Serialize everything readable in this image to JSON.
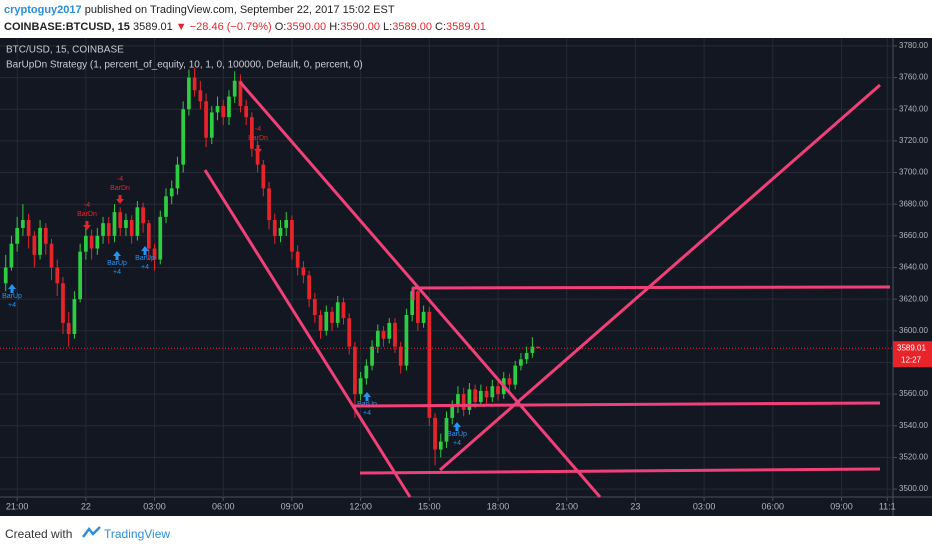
{
  "header": {
    "author": "cryptoguy2017",
    "published": "published on TradingView.com, September 22, 2017 15:02 EST",
    "symbol": "COINBASE:BTCUSD, 15",
    "last": "3589.01",
    "change": "▼ −28.46 (−0.79%)",
    "ohlc": [
      {
        "key": "O:",
        "value": "3590.00"
      },
      {
        "key": "H:",
        "value": "3590.00"
      },
      {
        "key": "L:",
        "value": "3589.00"
      },
      {
        "key": "C:",
        "value": "3589.01"
      }
    ]
  },
  "footer": {
    "text": "Created with",
    "brand": "TradingView"
  },
  "chart_data": {
    "type": "candlestick",
    "title": "BTC/USD, 15, COINBASE",
    "subtitle": "BarUpDn Strategy (1, percent_of_equity, 10, 1, 0, 100000, Default, 0, percent, 0)",
    "up_color": "#2ecc40",
    "down_color": "#e8242b",
    "x": [
      -2,
      -1,
      0,
      1,
      2,
      3,
      4,
      5,
      6,
      7,
      8,
      9,
      10,
      11,
      12,
      13,
      14,
      15,
      16,
      17,
      18,
      19,
      20,
      21,
      22,
      23,
      24,
      25,
      26,
      27,
      28,
      29,
      30,
      31,
      32,
      33,
      34,
      35,
      36,
      37,
      38,
      39,
      40,
      41,
      42,
      43,
      44,
      45,
      46,
      47,
      48,
      49,
      50,
      51,
      52,
      53,
      54,
      55,
      56,
      57,
      58,
      59,
      60,
      61,
      62,
      63,
      64,
      65,
      66,
      67,
      68,
      69,
      70,
      71,
      72,
      73,
      74,
      75,
      76,
      77,
      78,
      79,
      80,
      81,
      82,
      83,
      84,
      85,
      86,
      87,
      88,
      89,
      90,
      91
    ],
    "candles": [
      [
        3630,
        3648,
        3625,
        3640
      ],
      [
        3640,
        3660,
        3638,
        3655
      ],
      [
        3655,
        3672,
        3650,
        3665
      ],
      [
        3665,
        3680,
        3660,
        3670
      ],
      [
        3670,
        3674,
        3652,
        3660
      ],
      [
        3660,
        3663,
        3640,
        3648
      ],
      [
        3648,
        3670,
        3645,
        3665
      ],
      [
        3665,
        3668,
        3648,
        3655
      ],
      [
        3655,
        3658,
        3632,
        3640
      ],
      [
        3640,
        3645,
        3622,
        3630
      ],
      [
        3630,
        3634,
        3598,
        3605
      ],
      [
        3605,
        3612,
        3590,
        3598
      ],
      [
        3598,
        3625,
        3595,
        3620
      ],
      [
        3620,
        3655,
        3618,
        3650
      ],
      [
        3650,
        3665,
        3645,
        3660
      ],
      [
        3660,
        3664,
        3645,
        3652
      ],
      [
        3652,
        3665,
        3648,
        3660
      ],
      [
        3660,
        3672,
        3655,
        3668
      ],
      [
        3668,
        3672,
        3655,
        3660
      ],
      [
        3660,
        3680,
        3656,
        3675
      ],
      [
        3675,
        3678,
        3660,
        3665
      ],
      [
        3665,
        3674,
        3660,
        3670
      ],
      [
        3670,
        3673,
        3655,
        3660
      ],
      [
        3660,
        3682,
        3657,
        3678
      ],
      [
        3678,
        3681,
        3662,
        3668
      ],
      [
        3668,
        3670,
        3645,
        3652
      ],
      [
        3652,
        3655,
        3638,
        3645
      ],
      [
        3645,
        3676,
        3642,
        3672
      ],
      [
        3672,
        3690,
        3668,
        3685
      ],
      [
        3685,
        3695,
        3680,
        3690
      ],
      [
        3690,
        3710,
        3686,
        3705
      ],
      [
        3705,
        3745,
        3700,
        3740
      ],
      [
        3740,
        3765,
        3736,
        3760
      ],
      [
        3760,
        3766,
        3748,
        3752
      ],
      [
        3752,
        3758,
        3740,
        3745
      ],
      [
        3745,
        3750,
        3716,
        3722
      ],
      [
        3722,
        3742,
        3718,
        3738
      ],
      [
        3738,
        3748,
        3733,
        3742
      ],
      [
        3742,
        3746,
        3730,
        3735
      ],
      [
        3735,
        3752,
        3730,
        3748
      ],
      [
        3748,
        3764,
        3744,
        3758
      ],
      [
        3758,
        3762,
        3738,
        3742
      ],
      [
        3742,
        3746,
        3730,
        3735
      ],
      [
        3735,
        3738,
        3710,
        3715
      ],
      [
        3715,
        3720,
        3700,
        3705
      ],
      [
        3705,
        3708,
        3685,
        3690
      ],
      [
        3690,
        3694,
        3664,
        3670
      ],
      [
        3670,
        3674,
        3655,
        3660
      ],
      [
        3660,
        3670,
        3656,
        3665
      ],
      [
        3665,
        3675,
        3660,
        3670
      ],
      [
        3670,
        3673,
        3645,
        3650
      ],
      [
        3650,
        3654,
        3635,
        3640
      ],
      [
        3640,
        3644,
        3630,
        3635
      ],
      [
        3635,
        3638,
        3615,
        3620
      ],
      [
        3620,
        3624,
        3605,
        3610
      ],
      [
        3610,
        3613,
        3595,
        3600
      ],
      [
        3600,
        3616,
        3597,
        3612
      ],
      [
        3612,
        3615,
        3600,
        3605
      ],
      [
        3605,
        3622,
        3602,
        3618
      ],
      [
        3618,
        3621,
        3604,
        3608
      ],
      [
        3608,
        3611,
        3585,
        3590
      ],
      [
        3590,
        3593,
        3545,
        3560
      ],
      [
        3560,
        3574,
        3556,
        3570
      ],
      [
        3570,
        3582,
        3566,
        3578
      ],
      [
        3578,
        3594,
        3575,
        3590
      ],
      [
        3590,
        3604,
        3586,
        3600
      ],
      [
        3600,
        3603,
        3590,
        3595
      ],
      [
        3595,
        3608,
        3592,
        3605
      ],
      [
        3605,
        3608,
        3586,
        3590
      ],
      [
        3590,
        3593,
        3573,
        3578
      ],
      [
        3578,
        3614,
        3575,
        3610
      ],
      [
        3610,
        3628,
        3606,
        3625
      ],
      [
        3625,
        3628,
        3600,
        3605
      ],
      [
        3605,
        3616,
        3602,
        3612
      ],
      [
        3612,
        3615,
        3540,
        3545
      ],
      [
        3545,
        3548,
        3515,
        3525
      ],
      [
        3525,
        3535,
        3520,
        3530
      ],
      [
        3530,
        3549,
        3526,
        3545
      ],
      [
        3545,
        3556,
        3541,
        3552
      ],
      [
        3552,
        3565,
        3548,
        3560
      ],
      [
        3560,
        3564,
        3546,
        3550
      ],
      [
        3550,
        3567,
        3547,
        3563
      ],
      [
        3563,
        3566,
        3551,
        3555
      ],
      [
        3555,
        3566,
        3552,
        3562
      ],
      [
        3562,
        3565,
        3554,
        3558
      ],
      [
        3558,
        3569,
        3555,
        3565
      ],
      [
        3565,
        3568,
        3556,
        3560
      ],
      [
        3560,
        3574,
        3557,
        3570
      ],
      [
        3570,
        3573,
        3562,
        3566
      ],
      [
        3566,
        3581,
        3563,
        3578
      ],
      [
        3578,
        3586,
        3575,
        3582
      ],
      [
        3582,
        3590,
        3579,
        3586
      ],
      [
        3586,
        3596,
        3583,
        3590
      ],
      [
        3590,
        3590,
        3589,
        3589.01
      ]
    ],
    "xlim": [
      -3,
      153
    ],
    "xticks": [
      {
        "value": 0,
        "label": "21:00"
      },
      {
        "value": 12,
        "label": "22"
      },
      {
        "value": 24,
        "label": "03:00"
      },
      {
        "value": 36,
        "label": "06:00"
      },
      {
        "value": 48,
        "label": "09:00"
      },
      {
        "value": 60,
        "label": "12:00"
      },
      {
        "value": 72,
        "label": "15:00"
      },
      {
        "value": 84,
        "label": "18:00"
      },
      {
        "value": 96,
        "label": "21:00"
      },
      {
        "value": 108,
        "label": "23"
      },
      {
        "value": 120,
        "label": "03:00"
      },
      {
        "value": 132,
        "label": "06:00"
      },
      {
        "value": 144,
        "label": "09:00"
      },
      {
        "value": 152,
        "label": "11:1"
      }
    ],
    "ylim": [
      3495,
      3785
    ],
    "yticks": [
      {
        "value": 3500,
        "label": "3500.00"
      },
      {
        "value": 3520,
        "label": "3520.00"
      },
      {
        "value": 3540,
        "label": "3540.00"
      },
      {
        "value": 3560,
        "label": "3560.00"
      },
      {
        "value": 3580,
        "label": "3580.00"
      },
      {
        "value": 3600,
        "label": "3600.00"
      },
      {
        "value": 3620,
        "label": "3620.00"
      },
      {
        "value": 3640,
        "label": "3640.00"
      },
      {
        "value": 3660,
        "label": "3660.00"
      },
      {
        "value": 3680,
        "label": "3680.00"
      },
      {
        "value": 3700,
        "label": "3700.00"
      },
      {
        "value": 3720,
        "label": "3720.00"
      },
      {
        "value": 3740,
        "label": "3740.00"
      },
      {
        "value": 3760,
        "label": "3760.00"
      },
      {
        "value": 3780,
        "label": "3780.00"
      }
    ],
    "grid": true,
    "last_price": 3589.01,
    "last_price_label": "3589.01",
    "countdown": "12:27",
    "signals": [
      {
        "text": "BarUp",
        "qty": "+4"
      },
      {
        "text": "BarDn",
        "qty": "-4"
      },
      {
        "text": "BarDn",
        "qty": "-4"
      },
      {
        "text": "BarUp",
        "qty": "+4"
      },
      {
        "text": "BarUp",
        "qty": "+4"
      },
      {
        "text": "BarDn",
        "qty": "-4"
      },
      {
        "text": "BarUp",
        "qty": "+4"
      },
      {
        "text": "BarUp",
        "qty": "+4"
      }
    ]
  }
}
